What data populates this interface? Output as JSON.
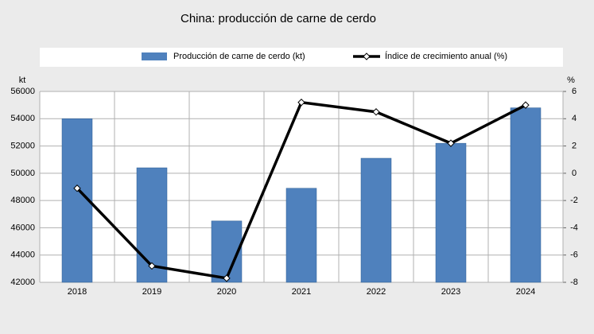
{
  "chart_data": {
    "type": "bar_line",
    "title": "China: producción de carne de cerdo",
    "categories": [
      "2018",
      "2019",
      "2020",
      "2021",
      "2022",
      "2023",
      "2024"
    ],
    "series": [
      {
        "name": "Producción de carne de cerdo (kt)",
        "type": "bar",
        "color": "#4f81bd",
        "values": [
          54000,
          50400,
          46500,
          48900,
          51100,
          52200,
          54800
        ]
      },
      {
        "name": "Índice de crecimiento anual (%)",
        "type": "line",
        "color": "#000000",
        "axis": "y2",
        "values": [
          -1.1,
          -6.8,
          -7.7,
          5.2,
          4.5,
          2.2,
          5.0
        ]
      }
    ],
    "y_label": "kt",
    "y2_label": "%",
    "ylim": [
      42000,
      56000
    ],
    "yticks": [
      42000,
      44000,
      46000,
      48000,
      50000,
      52000,
      54000,
      56000
    ],
    "y2lim": [
      -8,
      6
    ],
    "y2ticks": [
      -8,
      -6,
      -4,
      -2,
      0,
      2,
      4,
      6
    ],
    "grid": true
  }
}
